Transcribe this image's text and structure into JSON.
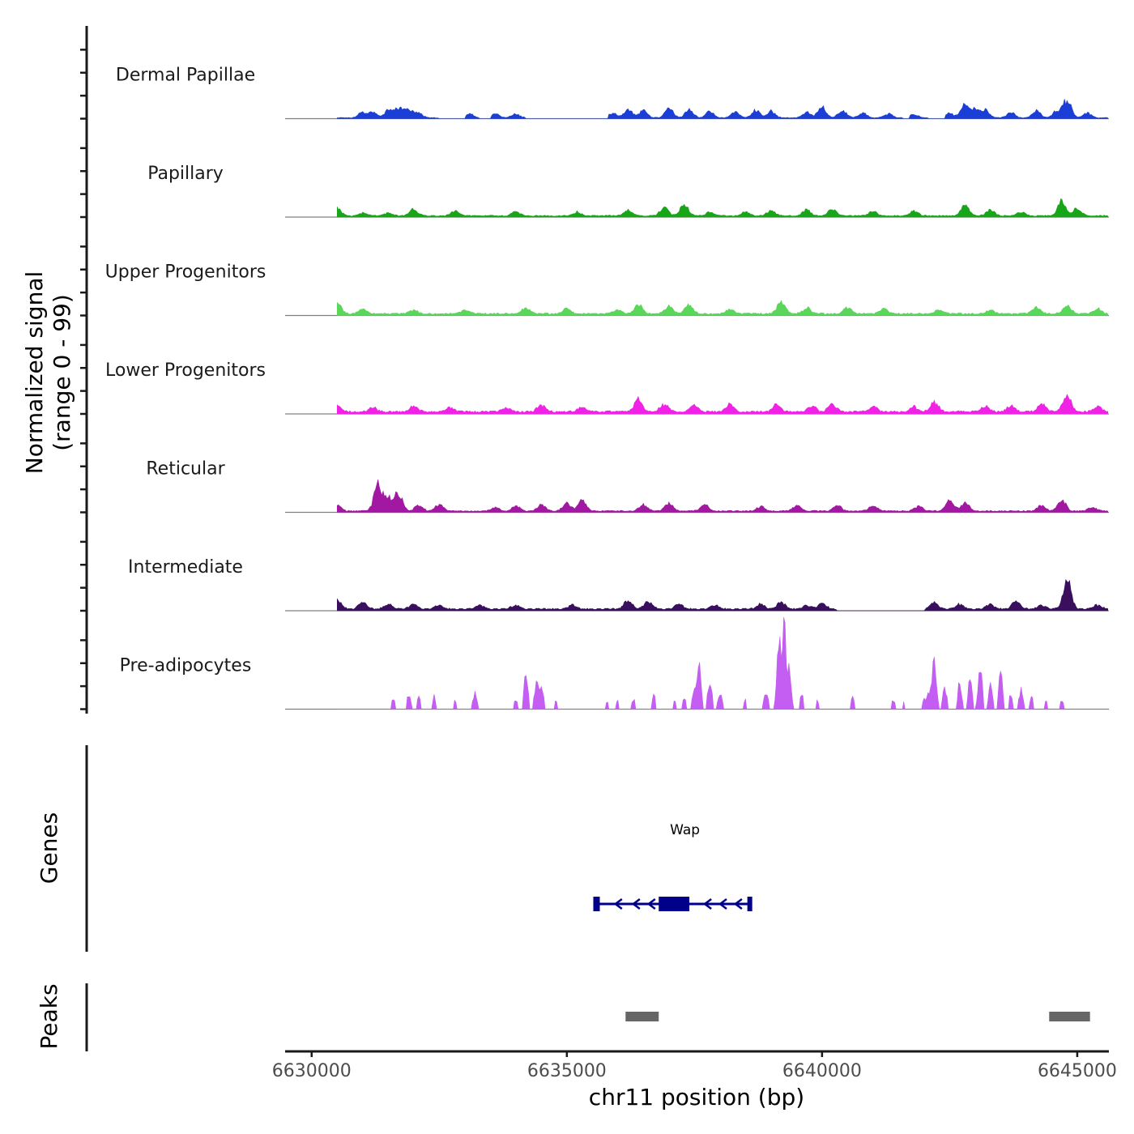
{
  "chart_data": {
    "type": "area",
    "title": "",
    "ylabel_signal": [
      "Normalized signal",
      "(range 0 - 99)"
    ],
    "ylabel_genes": "Genes",
    "ylabel_peaks": "Peaks",
    "xlabel": "chr11 position (bp)",
    "xlim": [
      6629480,
      6645620
    ],
    "ylim": [
      0,
      99
    ],
    "x_ticks": [
      6630000,
      6635000,
      6640000,
      6645000
    ],
    "x_tick_labels": [
      "6630000",
      "6635000",
      "6640000",
      "6645000"
    ],
    "region": [
      6630500,
      6645600
    ],
    "series": [
      {
        "name": "Dermal Papillae",
        "color": "#1B3FD6",
        "baseline": 1,
        "peaks": [
          [
            6631000,
            6
          ],
          [
            6631200,
            6
          ],
          [
            6631500,
            8
          ],
          [
            6631700,
            10
          ],
          [
            6631900,
            9
          ],
          [
            6632100,
            5
          ],
          [
            6633100,
            4
          ],
          [
            6633600,
            4
          ],
          [
            6634000,
            4
          ],
          [
            6635900,
            5
          ],
          [
            6636200,
            9
          ],
          [
            6636500,
            8
          ],
          [
            6637000,
            11
          ],
          [
            6637400,
            9
          ],
          [
            6637800,
            7
          ],
          [
            6638300,
            6
          ],
          [
            6638700,
            8
          ],
          [
            6639000,
            7
          ],
          [
            6639700,
            6
          ],
          [
            6640000,
            11
          ],
          [
            6640400,
            8
          ],
          [
            6640800,
            5
          ],
          [
            6641300,
            4
          ],
          [
            6641800,
            4
          ],
          [
            6642500,
            5
          ],
          [
            6642800,
            13
          ],
          [
            6643000,
            10
          ],
          [
            6643200,
            8
          ],
          [
            6643700,
            6
          ],
          [
            6644200,
            8
          ],
          [
            6644600,
            7
          ],
          [
            6644800,
            19
          ],
          [
            6645200,
            5
          ]
        ],
        "gaps": [
          [
            6632500,
            6633000
          ],
          [
            6633300,
            6633500
          ],
          [
            6634200,
            6635800
          ],
          [
            6641600,
            6641700
          ],
          [
            6642100,
            6642400
          ]
        ]
      },
      {
        "name": "Papillary",
        "color": "#17A617",
        "baseline": 1.5,
        "peaks": [
          [
            6630500,
            8
          ],
          [
            6631000,
            3
          ],
          [
            6631500,
            3
          ],
          [
            6632000,
            7
          ],
          [
            6632800,
            5
          ],
          [
            6634000,
            4
          ],
          [
            6635200,
            4
          ],
          [
            6636200,
            6
          ],
          [
            6636900,
            9
          ],
          [
            6637300,
            12
          ],
          [
            6637800,
            4
          ],
          [
            6638500,
            4
          ],
          [
            6639000,
            6
          ],
          [
            6639700,
            6
          ],
          [
            6640200,
            7
          ],
          [
            6641000,
            5
          ],
          [
            6641800,
            5
          ],
          [
            6642800,
            11
          ],
          [
            6643300,
            6
          ],
          [
            6643900,
            4
          ],
          [
            6644700,
            15
          ],
          [
            6645000,
            8
          ]
        ],
        "gaps": []
      },
      {
        "name": "Upper Progenitors",
        "color": "#5AD65A",
        "baseline": 2,
        "peaks": [
          [
            6630500,
            11
          ],
          [
            6631000,
            5
          ],
          [
            6632000,
            4
          ],
          [
            6633000,
            4
          ],
          [
            6634200,
            6
          ],
          [
            6635000,
            6
          ],
          [
            6636000,
            4
          ],
          [
            6636400,
            10
          ],
          [
            6637000,
            8
          ],
          [
            6637400,
            10
          ],
          [
            6638200,
            5
          ],
          [
            6639200,
            13
          ],
          [
            6639700,
            6
          ],
          [
            6640500,
            7
          ],
          [
            6641200,
            5
          ],
          [
            6642300,
            4
          ],
          [
            6643300,
            4
          ],
          [
            6644200,
            7
          ],
          [
            6644800,
            8
          ],
          [
            6645400,
            5
          ]
        ],
        "gaps": []
      },
      {
        "name": "Lower Progenitors",
        "color": "#F022E6",
        "baseline": 2.5,
        "peaks": [
          [
            6630500,
            6
          ],
          [
            6631200,
            4
          ],
          [
            6632000,
            6
          ],
          [
            6632700,
            5
          ],
          [
            6633800,
            4
          ],
          [
            6634500,
            7
          ],
          [
            6635300,
            5
          ],
          [
            6636400,
            13
          ],
          [
            6636900,
            8
          ],
          [
            6637500,
            7
          ],
          [
            6638200,
            8
          ],
          [
            6639100,
            7
          ],
          [
            6639800,
            6
          ],
          [
            6640200,
            8
          ],
          [
            6641000,
            6
          ],
          [
            6641800,
            5
          ],
          [
            6642200,
            10
          ],
          [
            6643200,
            6
          ],
          [
            6643700,
            6
          ],
          [
            6644300,
            9
          ],
          [
            6644800,
            17
          ],
          [
            6645400,
            5
          ]
        ],
        "gaps": []
      },
      {
        "name": "Reticular",
        "color": "#A218A2",
        "baseline": 1.5,
        "peaks": [
          [
            6630500,
            6
          ],
          [
            6631300,
            28
          ],
          [
            6631500,
            14
          ],
          [
            6631700,
            18
          ],
          [
            6632100,
            6
          ],
          [
            6632500,
            7
          ],
          [
            6633600,
            4
          ],
          [
            6634000,
            5
          ],
          [
            6634500,
            6
          ],
          [
            6635000,
            8
          ],
          [
            6635300,
            11
          ],
          [
            6636500,
            7
          ],
          [
            6637000,
            9
          ],
          [
            6637700,
            7
          ],
          [
            6638800,
            5
          ],
          [
            6639500,
            6
          ],
          [
            6640300,
            6
          ],
          [
            6641000,
            5
          ],
          [
            6641900,
            5
          ],
          [
            6642500,
            11
          ],
          [
            6642800,
            9
          ],
          [
            6644300,
            6
          ],
          [
            6644700,
            11
          ],
          [
            6645300,
            4
          ]
        ],
        "gaps": []
      },
      {
        "name": "Intermediate",
        "color": "#3A0F5E",
        "baseline": 2,
        "peaks": [
          [
            6630500,
            11
          ],
          [
            6631000,
            7
          ],
          [
            6631500,
            5
          ],
          [
            6632000,
            5
          ],
          [
            6632500,
            4
          ],
          [
            6633300,
            4
          ],
          [
            6634000,
            4
          ],
          [
            6635100,
            4
          ],
          [
            6636200,
            9
          ],
          [
            6636600,
            8
          ],
          [
            6637200,
            5
          ],
          [
            6637900,
            4
          ],
          [
            6638800,
            5
          ],
          [
            6639200,
            7
          ],
          [
            6639700,
            4
          ],
          [
            6640000,
            6
          ],
          [
            6642200,
            7
          ],
          [
            6642700,
            5
          ],
          [
            6643300,
            5
          ],
          [
            6643800,
            8
          ],
          [
            6644300,
            4
          ],
          [
            6644800,
            30
          ],
          [
            6645400,
            4
          ]
        ],
        "gaps": [
          [
            6640300,
            6642000
          ]
        ]
      },
      {
        "name": "Pre-adipocytes",
        "color": "#C45EF2",
        "baseline": 0,
        "peaks": [
          [
            6631600,
            10
          ],
          [
            6631900,
            15
          ],
          [
            6632100,
            13
          ],
          [
            6632400,
            13
          ],
          [
            6632800,
            9
          ],
          [
            6633200,
            16
          ],
          [
            6634000,
            9
          ],
          [
            6634200,
            39
          ],
          [
            6634400,
            25
          ],
          [
            6634500,
            25
          ],
          [
            6634800,
            9
          ],
          [
            6635800,
            9
          ],
          [
            6636000,
            9
          ],
          [
            6636300,
            11
          ],
          [
            6636700,
            15
          ],
          [
            6637100,
            9
          ],
          [
            6637300,
            11
          ],
          [
            6637500,
            22
          ],
          [
            6637600,
            45
          ],
          [
            6637800,
            32
          ],
          [
            6638000,
            20
          ],
          [
            6638500,
            9
          ],
          [
            6638900,
            20
          ],
          [
            6639150,
            62
          ],
          [
            6639250,
            90
          ],
          [
            6639350,
            40
          ],
          [
            6639600,
            15
          ],
          [
            6639900,
            9
          ],
          [
            6640600,
            12
          ],
          [
            6641400,
            9
          ],
          [
            6641600,
            9
          ],
          [
            6642000,
            9
          ],
          [
            6642100,
            18
          ],
          [
            6642200,
            50
          ],
          [
            6642400,
            25
          ],
          [
            6642700,
            28
          ],
          [
            6642900,
            32
          ],
          [
            6643100,
            40
          ],
          [
            6643300,
            28
          ],
          [
            6643500,
            35
          ],
          [
            6643700,
            15
          ],
          [
            6643900,
            20
          ],
          [
            6644100,
            13
          ],
          [
            6644400,
            9
          ],
          [
            6644700,
            9
          ]
        ],
        "gaps": []
      }
    ],
    "genes": [
      {
        "name": "Wap",
        "start": 6635550,
        "end": 6638600,
        "cds_start": 6636800,
        "cds_end": 6637400,
        "strand": "-"
      }
    ],
    "peaks": [
      {
        "start": 6636150,
        "end": 6636800
      },
      {
        "start": 6644450,
        "end": 6645250
      }
    ]
  }
}
